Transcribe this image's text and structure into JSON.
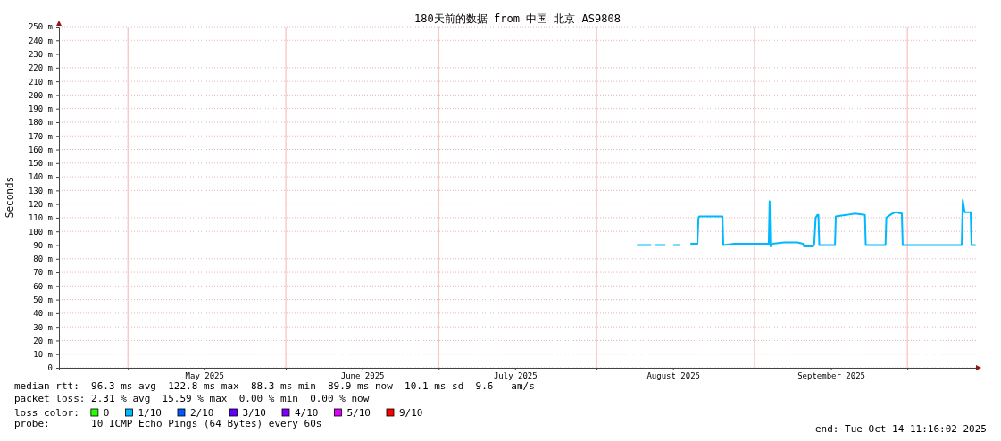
{
  "chart_data": {
    "type": "line",
    "title": "180天前的数据 from 中国 北京 AS9808",
    "ylabel": "Seconds",
    "xlim": [
      "2025-04-17T11:16",
      "2025-10-14T11:16"
    ],
    "xticks": [
      {
        "value": "2025-05-01",
        "label": null
      },
      {
        "value": "2025-05-16",
        "label": "May 2025"
      },
      {
        "value": "2025-06-01",
        "label": null
      },
      {
        "value": "2025-06-16",
        "label": "June 2025"
      },
      {
        "value": "2025-07-01",
        "label": null
      },
      {
        "value": "2025-07-16",
        "label": "July 2025"
      },
      {
        "value": "2025-08-01",
        "label": null
      },
      {
        "value": "2025-08-16",
        "label": "August 2025"
      },
      {
        "value": "2025-09-01",
        "label": null
      },
      {
        "value": "2025-09-16",
        "label": "September 2025"
      },
      {
        "value": "2025-10-01",
        "label": null
      }
    ],
    "ylim": [
      0,
      250
    ],
    "yticks": [
      {
        "value": 0,
        "label": "0"
      },
      {
        "value": 10,
        "label": "10 m"
      },
      {
        "value": 20,
        "label": "20 m"
      },
      {
        "value": 30,
        "label": "30 m"
      },
      {
        "value": 40,
        "label": "40 m"
      },
      {
        "value": 50,
        "label": "50 m"
      },
      {
        "value": 60,
        "label": "60 m"
      },
      {
        "value": 70,
        "label": "70 m"
      },
      {
        "value": 80,
        "label": "80 m"
      },
      {
        "value": 90,
        "label": "90 m"
      },
      {
        "value": 100,
        "label": "100 m"
      },
      {
        "value": 110,
        "label": "110 m"
      },
      {
        "value": 120,
        "label": "120 m"
      },
      {
        "value": 130,
        "label": "130 m"
      },
      {
        "value": 140,
        "label": "140 m"
      },
      {
        "value": 150,
        "label": "150 m"
      },
      {
        "value": 160,
        "label": "160 m"
      },
      {
        "value": 170,
        "label": "170 m"
      },
      {
        "value": 180,
        "label": "180 m"
      },
      {
        "value": 190,
        "label": "190 m"
      },
      {
        "value": 200,
        "label": "200 m"
      },
      {
        "value": 210,
        "label": "210 m"
      },
      {
        "value": 220,
        "label": "220 m"
      },
      {
        "value": 230,
        "label": "230 m"
      },
      {
        "value": 240,
        "label": "240 m"
      },
      {
        "value": 250,
        "label": "250 m"
      }
    ],
    "grid": true,
    "legend": "bottom",
    "legend_title": "loss color:",
    "marker": "none",
    "line_style": "solid",
    "series": [
      {
        "name": "0",
        "color": "#26ff00"
      },
      {
        "name": "1/10",
        "color": "#00b8ff",
        "x": [
          "2025-08-08T22:00",
          "2025-08-11T17:00",
          "2025-08-12T00:00",
          "2025-08-12T12:00",
          "2025-08-14T12:00",
          "2025-08-15T00:00",
          "2025-08-16T01:00",
          "2025-08-17T07:00",
          "2025-08-18T12:00",
          "2025-08-19T10:00",
          "2025-08-20T19:00",
          "2025-08-21T00:00",
          "2025-08-21T04:00",
          "2025-08-23T14:00",
          "2025-08-25T17:00",
          "2025-08-25T21:00",
          "2025-08-28T00:00",
          "2025-08-30T15:00",
          "2025-09-02T10:00",
          "2025-09-03T19:00",
          "2025-09-03T23:00",
          "2025-09-04T03:00",
          "2025-09-04T12:00",
          "2025-09-06T19:00",
          "2025-09-09T10:00",
          "2025-09-10T12:00",
          "2025-09-10T17:00",
          "2025-09-12T12:00",
          "2025-09-12T17:00",
          "2025-09-13T00:00",
          "2025-09-13T08:00",
          "2025-09-13T13:00",
          "2025-09-13T17:00",
          "2025-09-14T17:00",
          "2025-09-16T19:00",
          "2025-09-16T23:00",
          "2025-09-19T00:00",
          "2025-09-20T17:00",
          "2025-09-22T16:00",
          "2025-09-22T20:00",
          "2025-09-25T00:00",
          "2025-09-26T17:00",
          "2025-09-26T21:00",
          "2025-09-28T00:00",
          "2025-09-28T16:00",
          "2025-09-29T22:00",
          "2025-09-30T02:00",
          "2025-09-30T14:00",
          "2025-10-04T00:00",
          "2025-10-07T12:00",
          "2025-10-11T12:00",
          "2025-10-11T16:00",
          "2025-10-11T21:00",
          "2025-10-12T06:00",
          "2025-10-13T10:00",
          "2025-10-13T14:00",
          "2025-10-14T10:00"
        ],
        "values": [
          90,
          90,
          null,
          90,
          90,
          null,
          90,
          90,
          null,
          91,
          91,
          110,
          111,
          111,
          111,
          90,
          91,
          91,
          91,
          91,
          122,
          89,
          91,
          92,
          92,
          91,
          89,
          89,
          90,
          110,
          112,
          112,
          90,
          90,
          90,
          111,
          112,
          113,
          112,
          90,
          90,
          90,
          110,
          113,
          114,
          113,
          90,
          90,
          90,
          90,
          90,
          90,
          123,
          114,
          114,
          90,
          90
        ]
      },
      {
        "name": "2/10",
        "color": "#0059ff"
      },
      {
        "name": "3/10",
        "color": "#5e00ff"
      },
      {
        "name": "4/10",
        "color": "#7e00ff"
      },
      {
        "name": "5/10",
        "color": "#dd00ff"
      },
      {
        "name": "9/10",
        "color": "#ff0000"
      }
    ],
    "annotations": [
      "median rtt:  96.3 ms avg  122.8 ms max  88.3 ms min  89.9 ms now  10.1 ms sd  9.6   am/s",
      "packet loss: 2.31 % avg  15.59 % max  0.00 % min  0.00 % now",
      "probe:       10 ICMP Echo Pings (64 Bytes) every 60s",
      "end: Tue Oct 14 11:16:02 2025"
    ]
  }
}
